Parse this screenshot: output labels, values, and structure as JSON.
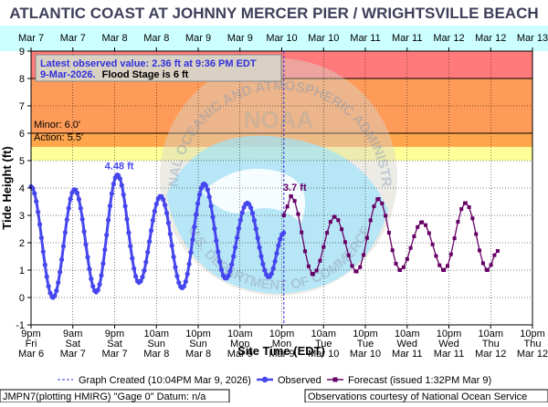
{
  "title": "ATLANTIC COAST AT JOHNNY MERCER PIER / WRIGHTSVILLE BEACH",
  "top_dates": [
    "Mar 7",
    "Mar 7",
    "Mar 8",
    "Mar 8",
    "Mar 9",
    "Mar 9",
    "Mar 10",
    "Mar 10",
    "Mar 11",
    "Mar 11",
    "Mar 12",
    "Mar 12",
    "Mar 13"
  ],
  "info_box": {
    "line1": "Latest observed value: 2.36 ft at 9:36 PM EDT",
    "line2_date": "9-Mar-2026.",
    "line2_flood": "Flood Stage is 6 ft"
  },
  "thresholds": {
    "minor_label": "Minor: 6.0'",
    "action_label": "Action: 5.5'"
  },
  "colors": {
    "major": "#ff7a7a",
    "moderate": "#ff9b58",
    "minor": "#ffa64d",
    "action": "#ffff99",
    "observed": "#4646ee",
    "forecast": "#660066",
    "background_band": "#ccffff",
    "title": "#3f3f5a"
  },
  "footer": {
    "left": "JMPN7(plotting HMIRG) \"Gage 0\" Datum: n/a",
    "right": "Observations courtesy of National Ocean Service"
  },
  "watermark": {
    "text_outer": "NATIONAL OCEANIC AND ATMOSPHERIC ADMINISTRATION",
    "text_inner": "U.S. DEPARTMENT OF COMMERCE",
    "logo_text": "NOAA"
  },
  "chart_data": {
    "type": "line",
    "ylabel": "Tide Height (ft)",
    "xlabel": "Site Time (EDT)",
    "ylim": [
      -1,
      9
    ],
    "x_unit": "hours since Mar 6 9pm",
    "x_ticks": [
      {
        "time": "9pm",
        "day": "Fri",
        "date": "Mar 6"
      },
      {
        "time": "9am",
        "day": "Sat",
        "date": "Mar 7"
      },
      {
        "time": "9pm",
        "day": "Sat",
        "date": "Mar 7"
      },
      {
        "time": "10am",
        "day": "Sun",
        "date": "Mar 8"
      },
      {
        "time": "10pm",
        "day": "Sun",
        "date": "Mar 8"
      },
      {
        "time": "10am",
        "day": "Mon",
        "date": "Mar 9"
      },
      {
        "time": "10pm",
        "day": "Mon",
        "date": "Mar 9"
      },
      {
        "time": "10am",
        "day": "Tue",
        "date": "Mar 10"
      },
      {
        "time": "10pm",
        "day": "Tue",
        "date": "Mar 10"
      },
      {
        "time": "10am",
        "day": "Wed",
        "date": "Mar 11"
      },
      {
        "time": "10pm",
        "day": "Wed",
        "date": "Mar 11"
      },
      {
        "time": "10am",
        "day": "Thu",
        "date": "Mar 12"
      },
      {
        "time": "10pm",
        "day": "Thu",
        "date": "Mar 12"
      }
    ],
    "y_ticks": [
      -1,
      0,
      1,
      2,
      3,
      4,
      5,
      6,
      7,
      8,
      9
    ],
    "bands": [
      {
        "name": "major",
        "from": 8,
        "to": 9
      },
      {
        "name": "moderate",
        "from": 6,
        "to": 8
      },
      {
        "name": "minor",
        "from": 5.5,
        "to": 6
      },
      {
        "name": "action",
        "from": 5,
        "to": 5.5
      }
    ],
    "flood_stage": 6,
    "observed_peak_label": "4.48 ft",
    "forecast_peak_label": "3.7 ft",
    "legend": {
      "created": "Graph Created (10:04PM Mar 9, 2026)",
      "observed": "Observed",
      "forecast": "Forecast (issued 1:32PM Mar 9)"
    },
    "observed_extrema": [
      {
        "t": 0,
        "v": 4.05
      },
      {
        "t": 6.3,
        "v": 0.0
      },
      {
        "t": 12.5,
        "v": 3.95
      },
      {
        "t": 18.7,
        "v": 0.2
      },
      {
        "t": 24.8,
        "v": 4.48
      },
      {
        "t": 31,
        "v": 0.55
      },
      {
        "t": 37.2,
        "v": 3.7
      },
      {
        "t": 43.4,
        "v": 0.35
      },
      {
        "t": 49.7,
        "v": 4.15
      },
      {
        "t": 55.9,
        "v": 0.7
      },
      {
        "t": 62.1,
        "v": 3.45
      },
      {
        "t": 68.3,
        "v": 0.75
      },
      {
        "t": 72.6,
        "v": 2.36
      }
    ],
    "forecast_extrema": [
      {
        "t": 72.6,
        "v": 3.0
      },
      {
        "t": 74.7,
        "v": 3.7
      },
      {
        "t": 81,
        "v": 0.85
      },
      {
        "t": 87.2,
        "v": 2.95
      },
      {
        "t": 93.5,
        "v": 0.95
      },
      {
        "t": 99.8,
        "v": 3.6
      },
      {
        "t": 106,
        "v": 1.0
      },
      {
        "t": 112.3,
        "v": 2.75
      },
      {
        "t": 118.6,
        "v": 1.0
      },
      {
        "t": 124.8,
        "v": 3.45
      },
      {
        "t": 131.1,
        "v": 1.0
      },
      {
        "t": 134,
        "v": 1.7
      }
    ]
  }
}
